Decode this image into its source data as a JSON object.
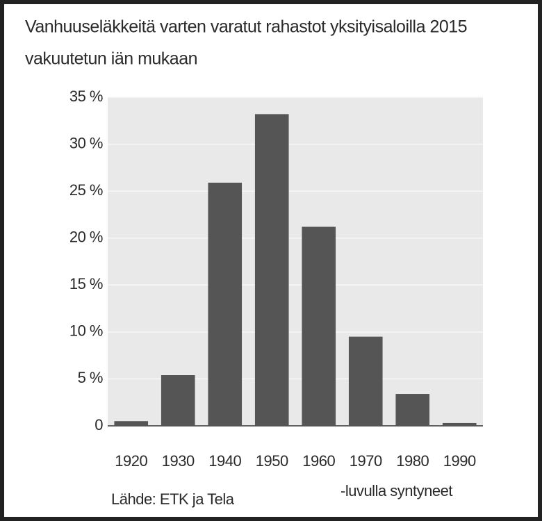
{
  "chart_data": {
    "type": "bar",
    "title": [
      "Vanhuuseläkkeitä varten varatut rahastot yksityisaloilla 2015",
      "vakuutetun iän mukaan"
    ],
    "categories": [
      "1920",
      "1930",
      "1940",
      "1950",
      "1960",
      "1970",
      "1980",
      "1990"
    ],
    "values": [
      0.5,
      5.4,
      25.9,
      33.2,
      21.2,
      9.5,
      3.4,
      0.3
    ],
    "color": "#555555",
    "ylim": [
      0,
      35
    ],
    "yticks": [
      0,
      {
        "value": 5,
        "label": "5 %"
      },
      {
        "value": 10,
        "label": "10 %"
      },
      {
        "value": 15,
        "label": "15 %"
      },
      {
        "value": 20,
        "label": "20 %"
      },
      {
        "value": 25,
        "label": "25 %"
      },
      {
        "value": 30,
        "label": "30 %"
      },
      {
        "value": 35,
        "label": "35 %"
      }
    ],
    "grid": true,
    "x_label": "-luvulla syntyneet",
    "source": "Lähde: ETK ja Tela"
  }
}
